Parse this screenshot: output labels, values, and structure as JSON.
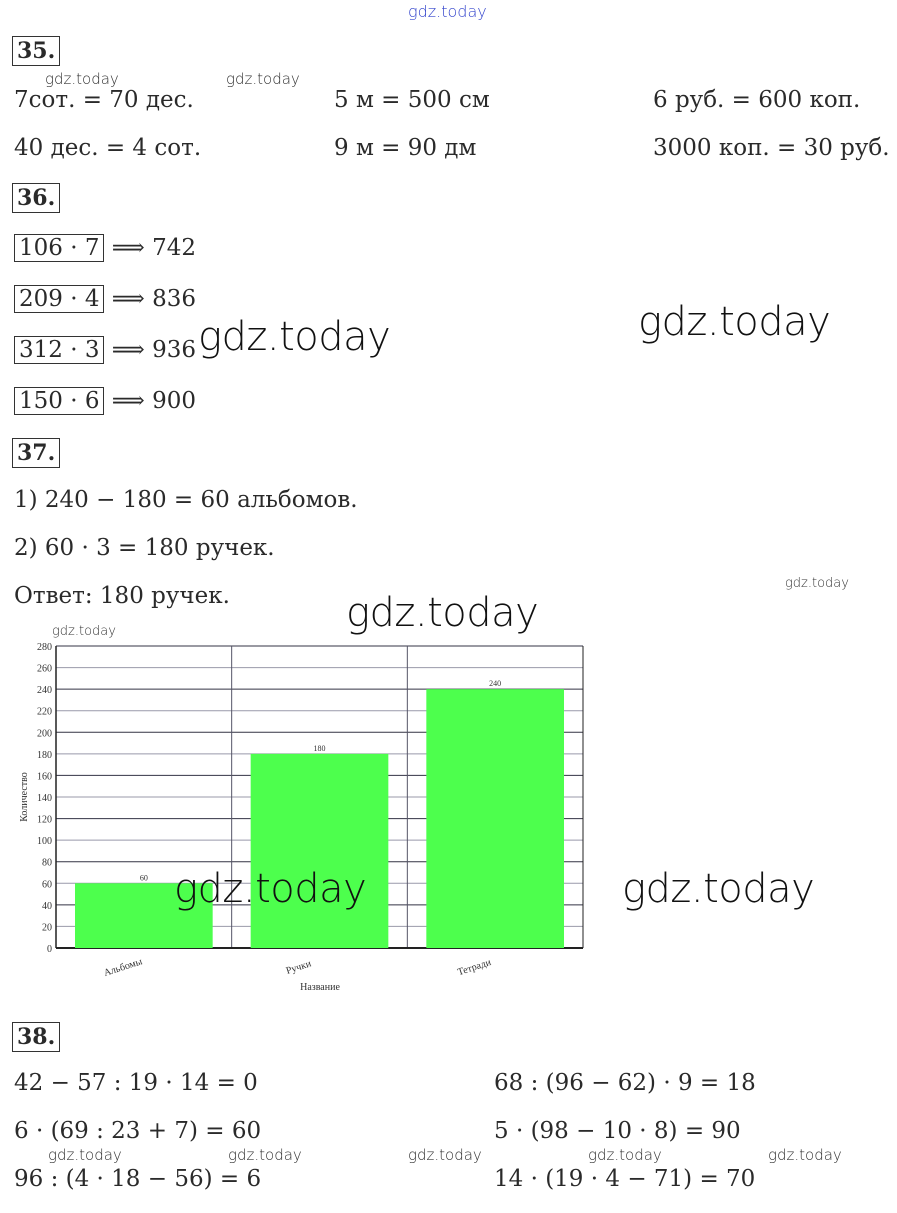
{
  "watermark": "gdz.today",
  "ex35": {
    "number": "35.",
    "items": [
      "7сот. = 70 дес.",
      "5 м = 500 см",
      "6 руб. = 600 коп.",
      "40 дес. = 4 сот.",
      "9 м = 90 дм",
      "3000 коп. = 30 руб."
    ]
  },
  "ex36": {
    "number": "36.",
    "rows": [
      {
        "expr": "106 · 7",
        "result": "⟹ 742"
      },
      {
        "expr": "209 · 4",
        "result": "⟹ 836"
      },
      {
        "expr": "312 · 3",
        "result": "⟹ 936"
      },
      {
        "expr": "150 · 6",
        "result": "⟹ 900"
      }
    ]
  },
  "ex37": {
    "number": "37.",
    "lines": [
      "1) 240 − 180 = 60 альбомов.",
      "2) 60 · 3 = 180 ручек.",
      "Ответ: 180 ручек."
    ]
  },
  "chart_data": {
    "type": "bar",
    "categories": [
      "Альбомы",
      "Ручки",
      "Тетради"
    ],
    "values": [
      60,
      180,
      240
    ],
    "xlabel": "Название",
    "ylabel": "Количество",
    "ylim": [
      0,
      280
    ],
    "yticks": [
      0,
      20,
      40,
      60,
      80,
      100,
      120,
      140,
      160,
      180,
      200,
      220,
      240,
      260,
      280
    ],
    "grid": true,
    "bar_color": "#4dff4d"
  },
  "ex38": {
    "number": "38.",
    "items": [
      "42 − 57 : 19 · 14 = 0",
      "68 : (96 − 62) · 9 = 18",
      "6 · (69 : 23 + 7) = 60",
      "5 · (98 − 10 · 8) = 90",
      "96 : (4 · 18 − 56) = 6",
      "14 · (19 · 4 − 71) = 70"
    ]
  }
}
